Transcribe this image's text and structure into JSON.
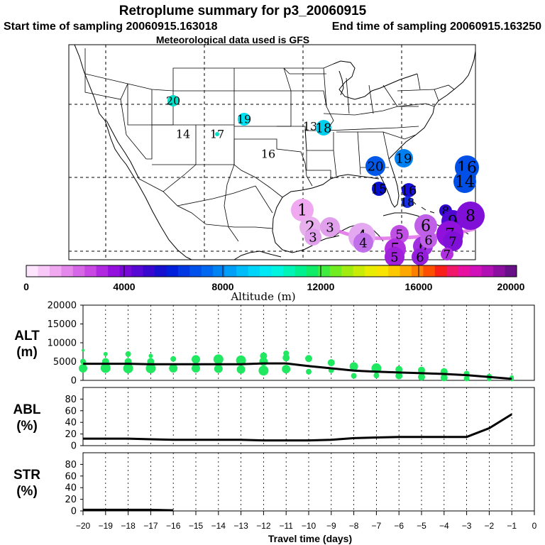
{
  "title": "Retroplume summary for p3_20060915",
  "start_label": "Start time of sampling 20060915.163018",
  "end_label": "End time of sampling 20060915.163250",
  "met_label": "Meteorological data used is GFS",
  "colorbar": {
    "label": "Altitude (m)",
    "ticks": [
      "0",
      "4000",
      "8000",
      "12000",
      "16000",
      "20000"
    ],
    "min": 0,
    "max": 20000,
    "colors": [
      "#fde6fd",
      "#f8c8f8",
      "#f0a8f0",
      "#e488ec",
      "#d668e8",
      "#c848e4",
      "#b028e0",
      "#9410dc",
      "#7808d8",
      "#5808d4",
      "#3808d0",
      "#1810d0",
      "#0020dc",
      "#0038e4",
      "#0050ec",
      "#0068f0",
      "#0084f4",
      "#00a0f8",
      "#00bcf8",
      "#00d4f8",
      "#00e8f4",
      "#00f4e0",
      "#00f4b8",
      "#00f090",
      "#10ec68",
      "#40ec40",
      "#70ec20",
      "#a0ec10",
      "#c8ec08",
      "#e8ec00",
      "#f8e400",
      "#fcc800",
      "#fca800",
      "#fc8000",
      "#fc5000",
      "#f82018",
      "#f01868",
      "#e810a0",
      "#d010b8",
      "#b010b4",
      "#8c10a0",
      "#681088"
    ]
  },
  "map": {
    "markers": [
      {
        "label": "20",
        "color": "#00e0c8",
        "size": 8
      },
      {
        "label": "14",
        "color": "",
        "size": 0
      },
      {
        "label": "17",
        "color": "#00e0c8",
        "size": 3
      },
      {
        "label": "19",
        "color": "#00e0f0",
        "size": 9
      },
      {
        "label": "16",
        "color": "",
        "size": 0
      },
      {
        "label": "13",
        "color": "",
        "size": 0
      },
      {
        "label": "18",
        "color": "#00d0f0",
        "size": 11
      },
      {
        "label": "20",
        "color": "#0058e8",
        "size": 14
      },
      {
        "label": "19",
        "color": "#0080f0",
        "size": 13
      },
      {
        "label": "15",
        "color": "#0810d0",
        "size": 10
      },
      {
        "label": "16",
        "color": "#1810d8",
        "size": 10
      },
      {
        "label": "18",
        "color": "#1830e0",
        "size": 8
      },
      {
        "label": "16",
        "color": "#0050e8",
        "size": 17
      },
      {
        "label": "14",
        "color": "#0050e8",
        "size": 16
      },
      {
        "label": "1",
        "color": "#f0a8f0",
        "size": 16
      },
      {
        "label": "2",
        "color": "#e8b0ec",
        "size": 15
      },
      {
        "label": "3",
        "color": "#e0a0ec",
        "size": 14
      },
      {
        "label": "3",
        "color": "#e0a0ec",
        "size": 12
      },
      {
        "label": "4",
        "color": "#e4a8f0",
        "size": 19
      },
      {
        "label": "4",
        "color": "#c070e8",
        "size": 14
      },
      {
        "label": "5",
        "color": "#c050e4",
        "size": 13
      },
      {
        "label": "5",
        "color": "#b030e0",
        "size": 15
      },
      {
        "label": "5",
        "color": "#a020dc",
        "size": 14
      },
      {
        "label": "6",
        "color": "#c060e8",
        "size": 16
      },
      {
        "label": "6",
        "color": "#a030e0",
        "size": 14
      },
      {
        "label": "6",
        "color": "#9420dc",
        "size": 12
      },
      {
        "label": "6",
        "color": "#c060e8",
        "size": 12
      },
      {
        "label": "8",
        "color": "#3008d0",
        "size": 9
      },
      {
        "label": "9",
        "color": "#5008d4",
        "size": 16
      },
      {
        "label": "7",
        "color": "#9010dc",
        "size": 19
      },
      {
        "label": "7",
        "color": "#8010d8",
        "size": 14
      },
      {
        "label": "8",
        "color": "#8010d8",
        "size": 20
      },
      {
        "label": "7",
        "color": "#b030e0",
        "size": 9
      }
    ]
  },
  "x_axis": {
    "label": "Travel time (days)",
    "ticks": [
      "−20",
      "−19",
      "−18",
      "−17",
      "−16",
      "−15",
      "−14",
      "−13",
      "−12",
      "−11",
      "−10",
      "−9",
      "−8",
      "−7",
      "−6",
      "−5",
      "−4",
      "−3",
      "−2",
      "−1",
      "0"
    ]
  },
  "chart_data": [
    {
      "type": "line",
      "panel": "ALT",
      "ylabel_line1": "ALT",
      "ylabel_line2": "(m)",
      "ylim": [
        0,
        20000
      ],
      "yticks": [
        "0",
        "5000",
        "10000",
        "15000",
        "20000"
      ],
      "xlim": [
        -20,
        0
      ],
      "x": [
        -20,
        -19,
        -18,
        -17,
        -16,
        -15,
        -14,
        -13,
        -12,
        -11,
        -10,
        -9,
        -8,
        -7,
        -6,
        -5,
        -4,
        -3,
        -2,
        -1
      ],
      "mean": [
        4400,
        4400,
        4400,
        4300,
        4300,
        4300,
        4300,
        4300,
        4500,
        4500,
        3800,
        3200,
        2600,
        2300,
        2100,
        1900,
        1700,
        1400,
        900,
        400
      ],
      "scatter_color": "#20e860",
      "scatter": [
        {
          "x": -20,
          "y": 8000,
          "r": 2
        },
        {
          "x": -20,
          "y": 5000,
          "r": 4
        },
        {
          "x": -20,
          "y": 3200,
          "r": 6
        },
        {
          "x": -19,
          "y": 7000,
          "r": 3
        },
        {
          "x": -19,
          "y": 5000,
          "r": 5
        },
        {
          "x": -19,
          "y": 3300,
          "r": 7
        },
        {
          "x": -18,
          "y": 7000,
          "r": 4
        },
        {
          "x": -18,
          "y": 5000,
          "r": 5
        },
        {
          "x": -18,
          "y": 3200,
          "r": 7
        },
        {
          "x": -17,
          "y": 6500,
          "r": 3
        },
        {
          "x": -17,
          "y": 5000,
          "r": 5
        },
        {
          "x": -17,
          "y": 3200,
          "r": 7
        },
        {
          "x": -16,
          "y": 5700,
          "r": 4
        },
        {
          "x": -16,
          "y": 3200,
          "r": 6
        },
        {
          "x": -15,
          "y": 5600,
          "r": 6
        },
        {
          "x": -15,
          "y": 3200,
          "r": 6
        },
        {
          "x": -14,
          "y": 5600,
          "r": 7
        },
        {
          "x": -14,
          "y": 3100,
          "r": 6
        },
        {
          "x": -13,
          "y": 5300,
          "r": 7
        },
        {
          "x": -13,
          "y": 2900,
          "r": 6
        },
        {
          "x": -12,
          "y": 6500,
          "r": 5
        },
        {
          "x": -12,
          "y": 5000,
          "r": 6
        },
        {
          "x": -12,
          "y": 2600,
          "r": 7
        },
        {
          "x": -11,
          "y": 7200,
          "r": 4
        },
        {
          "x": -11,
          "y": 6000,
          "r": 5
        },
        {
          "x": -11,
          "y": 3000,
          "r": 6
        },
        {
          "x": -10,
          "y": 5800,
          "r": 5
        },
        {
          "x": -10,
          "y": 2300,
          "r": 4
        },
        {
          "x": -9,
          "y": 4700,
          "r": 5
        },
        {
          "x": -9,
          "y": 2700,
          "r": 4
        },
        {
          "x": -8,
          "y": 3700,
          "r": 6
        },
        {
          "x": -8,
          "y": 1200,
          "r": 4
        },
        {
          "x": -7,
          "y": 3200,
          "r": 7
        },
        {
          "x": -7,
          "y": 1300,
          "r": 4
        },
        {
          "x": -6,
          "y": 2900,
          "r": 5
        },
        {
          "x": -6,
          "y": 1200,
          "r": 5
        },
        {
          "x": -5,
          "y": 2700,
          "r": 5
        },
        {
          "x": -5,
          "y": 900,
          "r": 5
        },
        {
          "x": -4,
          "y": 2300,
          "r": 5
        },
        {
          "x": -4,
          "y": 700,
          "r": 5
        },
        {
          "x": -3,
          "y": 1800,
          "r": 4
        },
        {
          "x": -3,
          "y": 500,
          "r": 4
        },
        {
          "x": -2,
          "y": 1000,
          "r": 4
        },
        {
          "x": -2,
          "y": 300,
          "r": 3
        },
        {
          "x": -1,
          "y": 800,
          "r": 3
        },
        {
          "x": -1,
          "y": 300,
          "r": 3
        }
      ]
    },
    {
      "type": "line",
      "panel": "ABL",
      "ylabel_line1": "ABL",
      "ylabel_line2": "(%)",
      "ylim": [
        0,
        100
      ],
      "yticks": [
        "0",
        "20",
        "40",
        "60",
        "80"
      ],
      "xlim": [
        -20,
        0
      ],
      "x": [
        -20,
        -19,
        -18,
        -17,
        -16,
        -15,
        -14,
        -13,
        -12,
        -11,
        -10,
        -9,
        -8,
        -7,
        -6,
        -5,
        -4,
        -3,
        -2,
        -1
      ],
      "values": [
        12,
        12,
        12,
        11,
        10,
        10,
        10,
        10,
        9,
        9,
        9,
        10,
        13,
        14,
        15,
        15,
        15,
        15,
        30,
        54
      ]
    },
    {
      "type": "line",
      "panel": "STR",
      "ylabel_line1": "STR",
      "ylabel_line2": "(%)",
      "ylim": [
        0,
        100
      ],
      "yticks": [
        "0",
        "20",
        "40",
        "60",
        "80"
      ],
      "xlim": [
        -20,
        0
      ],
      "x": [
        -20,
        -19,
        -18,
        -17,
        -16
      ],
      "values": [
        2,
        2,
        2,
        2,
        1
      ]
    }
  ]
}
